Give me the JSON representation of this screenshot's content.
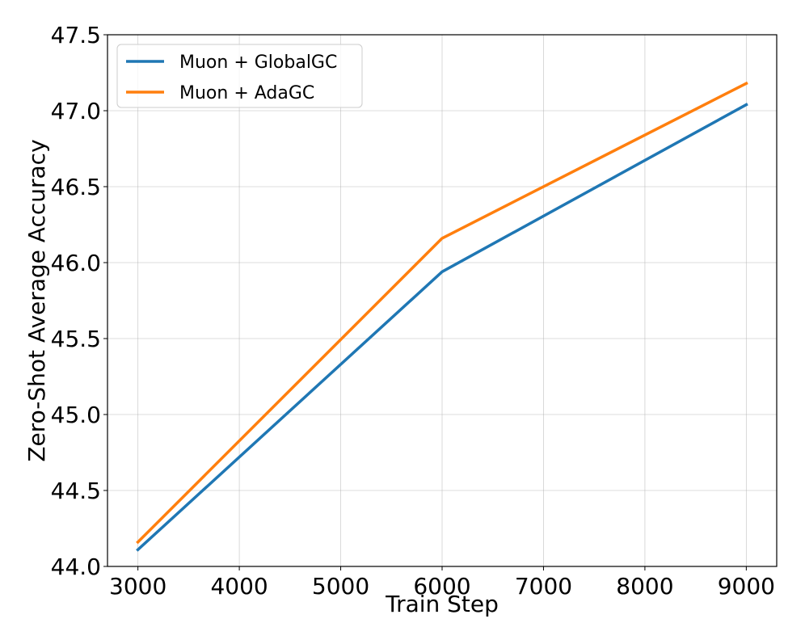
{
  "chart_data": {
    "type": "line",
    "title": "",
    "xlabel": "Train Step",
    "ylabel": "Zero-Shot Average Accuracy",
    "xlim": [
      2700,
      9300
    ],
    "ylim": [
      44.0,
      47.5
    ],
    "xticks": [
      3000,
      4000,
      5000,
      6000,
      7000,
      8000,
      9000
    ],
    "yticks": [
      44.0,
      44.5,
      45.0,
      45.5,
      46.0,
      46.5,
      47.0,
      47.5
    ],
    "ytick_labels": [
      "44.0",
      "44.5",
      "45.0",
      "45.5",
      "46.0",
      "46.5",
      "47.0",
      "47.5"
    ],
    "grid": true,
    "legend_position": "upper-left",
    "series": [
      {
        "name": "Muon + GlobalGC",
        "color": "#1f77b4",
        "x": [
          3000,
          6000,
          9000
        ],
        "y": [
          44.11,
          45.94,
          47.04
        ]
      },
      {
        "name": "Muon + AdaGC",
        "color": "#ff7f0e",
        "x": [
          3000,
          6000,
          9000
        ],
        "y": [
          44.16,
          46.16,
          47.18
        ]
      }
    ]
  }
}
